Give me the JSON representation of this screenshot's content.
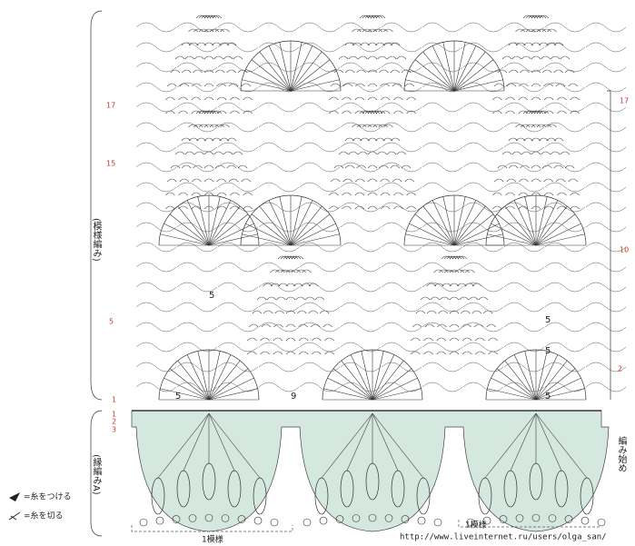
{
  "left_row_labels": [
    "17",
    "15",
    "5",
    "1",
    "1",
    "2",
    "3"
  ],
  "right_row_labels": [
    "17",
    "10",
    "2"
  ],
  "section_labels": [
    "(模様編み)",
    "(縁編みA)"
  ],
  "start_label": "編み始め",
  "chart_numbers": [
    "5",
    "5",
    "5",
    "5",
    "9",
    "5"
  ],
  "legend": [
    {
      "text": "=糸をつける"
    },
    {
      "text": "=糸を切る"
    }
  ],
  "repeat_labels": [
    "1模様",
    "1模様"
  ],
  "watermark": "http://www.liveinternet.ru/users/olga_san/"
}
